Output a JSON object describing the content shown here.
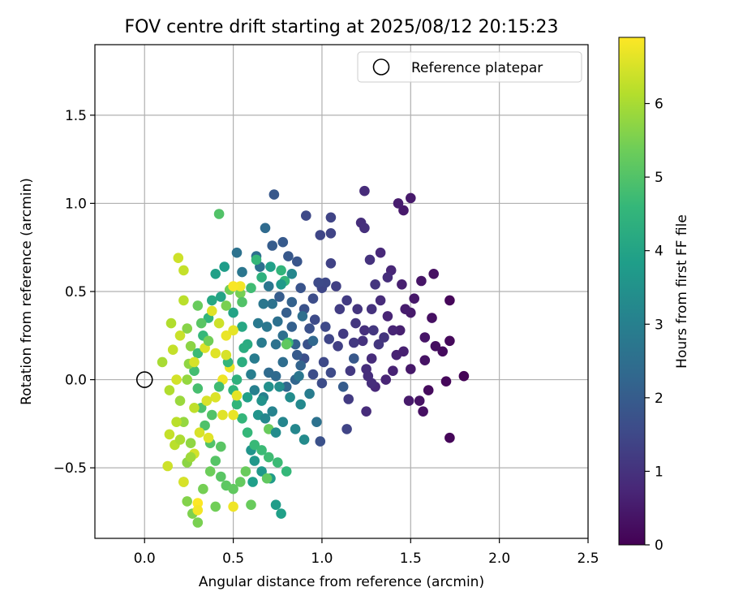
{
  "chart_data": {
    "type": "scatter",
    "title": "FOV centre drift starting at 2025/08/12 20:15:23",
    "xlabel": "Angular distance from reference (arcmin)",
    "ylabel": "Rotation from reference (arcmin)",
    "xlim": [
      -0.28,
      2.5
    ],
    "ylim": [
      -0.9,
      1.9
    ],
    "xticks": [
      0.0,
      0.5,
      1.0,
      1.5,
      2.0,
      2.5
    ],
    "xtick_labels": [
      "0.0",
      "0.5",
      "1.0",
      "1.5",
      "2.0",
      "2.5"
    ],
    "yticks": [
      -0.5,
      0.0,
      0.5,
      1.0,
      1.5
    ],
    "ytick_labels": [
      "−0.5",
      "0.0",
      "0.5",
      "1.0",
      "1.5"
    ],
    "grid": true,
    "legend": {
      "position": "top-right",
      "entries": [
        "Reference platepar"
      ]
    },
    "reference_point": {
      "x": 0.0,
      "y": 0.0,
      "label": "Reference platepar"
    },
    "colorbar": {
      "label": "Hours from first FF file",
      "colormap": "viridis",
      "range": [
        0,
        6.9
      ],
      "ticks": [
        0,
        1,
        2,
        3,
        4,
        5,
        6
      ],
      "tick_labels": [
        "0",
        "1",
        "2",
        "3",
        "4",
        "5",
        "6"
      ]
    },
    "points": [
      [
        1.8,
        0.02,
        0.05
      ],
      [
        1.72,
        0.45,
        0.1
      ],
      [
        1.7,
        -0.01,
        0.12
      ],
      [
        1.72,
        0.22,
        0.15
      ],
      [
        1.72,
        -0.33,
        0.1
      ],
      [
        1.68,
        0.16,
        0.2
      ],
      [
        1.64,
        0.19,
        0.25
      ],
      [
        1.63,
        0.6,
        0.3
      ],
      [
        1.6,
        -0.06,
        0.2
      ],
      [
        1.62,
        0.35,
        0.3
      ],
      [
        1.56,
        0.56,
        0.4
      ],
      [
        1.58,
        0.11,
        0.35
      ],
      [
        1.57,
        -0.18,
        0.3
      ],
      [
        1.55,
        -0.12,
        0.35
      ],
      [
        1.5,
        1.03,
        0.5
      ],
      [
        1.46,
        0.96,
        0.5
      ],
      [
        1.43,
        1.0,
        0.55
      ],
      [
        1.52,
        0.46,
        0.45
      ],
      [
        1.58,
        0.24,
        0.4
      ],
      [
        1.5,
        0.06,
        0.45
      ],
      [
        1.49,
        -0.12,
        0.5
      ],
      [
        1.5,
        0.38,
        0.5
      ],
      [
        1.45,
        0.54,
        0.6
      ],
      [
        1.47,
        0.4,
        0.55
      ],
      [
        1.44,
        0.28,
        0.6
      ],
      [
        1.42,
        0.14,
        0.65
      ],
      [
        1.4,
        0.28,
        0.7
      ],
      [
        1.37,
        0.36,
        0.7
      ],
      [
        1.39,
        0.62,
        0.75
      ],
      [
        1.33,
        0.72,
        0.8
      ],
      [
        1.36,
        0.0,
        0.7
      ],
      [
        1.3,
        -0.04,
        0.8
      ],
      [
        1.28,
        0.12,
        0.85
      ],
      [
        1.26,
        0.02,
        0.9
      ],
      [
        1.25,
        -0.18,
        0.85
      ],
      [
        1.25,
        0.06,
        0.9
      ],
      [
        1.24,
        0.28,
        0.95
      ],
      [
        1.23,
        0.22,
        1.0
      ],
      [
        1.24,
        1.07,
        0.85
      ],
      [
        1.22,
        0.89,
        0.9
      ],
      [
        1.24,
        0.86,
        0.95
      ],
      [
        1.27,
        0.68,
        1.0
      ],
      [
        1.3,
        0.54,
        1.05
      ],
      [
        1.28,
        0.4,
        1.0
      ],
      [
        1.29,
        0.28,
        1.1
      ],
      [
        1.32,
        0.2,
        1.1
      ],
      [
        1.35,
        0.24,
        1.05
      ],
      [
        1.19,
        0.32,
        1.1
      ],
      [
        1.18,
        0.21,
        1.15
      ],
      [
        1.16,
        0.05,
        1.15
      ],
      [
        1.15,
        -0.11,
        1.2
      ],
      [
        1.12,
        0.26,
        1.2
      ],
      [
        1.1,
        0.4,
        1.25
      ],
      [
        1.14,
        0.45,
        1.2
      ],
      [
        1.08,
        0.53,
        1.3
      ],
      [
        1.05,
        0.66,
        1.35
      ],
      [
        1.05,
        0.92,
        1.4
      ],
      [
        1.05,
        0.83,
        1.4
      ],
      [
        0.99,
        0.82,
        1.45
      ],
      [
        0.91,
        0.93,
        1.5
      ],
      [
        1.0,
        0.52,
        1.45
      ],
      [
        1.02,
        0.55,
        1.5
      ],
      [
        0.98,
        0.55,
        1.55
      ],
      [
        0.96,
        0.34,
        1.55
      ],
      [
        1.02,
        0.3,
        1.5
      ],
      [
        1.04,
        0.23,
        1.45
      ],
      [
        1.01,
        0.1,
        1.5
      ],
      [
        1.05,
        0.04,
        1.55
      ],
      [
        1.0,
        -0.02,
        1.6
      ],
      [
        0.95,
        0.03,
        1.6
      ],
      [
        0.9,
        0.12,
        1.65
      ],
      [
        1.14,
        -0.28,
        1.4
      ],
      [
        0.99,
        -0.35,
        1.7
      ],
      [
        0.93,
        0.29,
        1.7
      ],
      [
        0.9,
        0.4,
        1.75
      ],
      [
        0.88,
        0.52,
        1.8
      ],
      [
        0.86,
        0.67,
        1.85
      ],
      [
        0.81,
        0.7,
        1.9
      ],
      [
        0.78,
        0.78,
        1.95
      ],
      [
        0.73,
        1.05,
        1.9
      ],
      [
        0.72,
        0.76,
        2.0
      ],
      [
        0.76,
        0.47,
        2.0
      ],
      [
        0.8,
        0.38,
        2.05
      ],
      [
        0.83,
        0.3,
        2.1
      ],
      [
        0.85,
        0.2,
        2.15
      ],
      [
        0.88,
        0.08,
        2.2
      ],
      [
        0.85,
        0.0,
        2.25
      ],
      [
        0.8,
        -0.04,
        2.3
      ],
      [
        0.74,
        0.02,
        2.35
      ],
      [
        0.7,
        0.04,
        2.4
      ],
      [
        0.68,
        0.86,
        2.4
      ],
      [
        0.63,
        0.7,
        2.5
      ],
      [
        0.65,
        0.64,
        2.55
      ],
      [
        0.52,
        0.72,
        2.6
      ],
      [
        0.55,
        0.61,
        2.7
      ],
      [
        0.78,
        0.25,
        2.5
      ],
      [
        0.75,
        0.33,
        2.55
      ],
      [
        0.72,
        0.43,
        2.6
      ],
      [
        0.7,
        0.53,
        2.7
      ],
      [
        0.67,
        0.43,
        2.75
      ],
      [
        0.64,
        0.32,
        2.8
      ],
      [
        0.66,
        0.21,
        2.85
      ],
      [
        0.62,
        0.12,
        2.9
      ],
      [
        0.6,
        0.03,
        2.95
      ],
      [
        0.62,
        -0.06,
        3.0
      ],
      [
        0.67,
        -0.1,
        3.05
      ],
      [
        0.72,
        -0.18,
        3.1
      ],
      [
        0.78,
        -0.24,
        3.15
      ],
      [
        0.85,
        -0.28,
        3.2
      ],
      [
        0.9,
        -0.34,
        3.3
      ],
      [
        0.88,
        -0.14,
        3.25
      ],
      [
        0.82,
        -0.1,
        3.35
      ],
      [
        0.76,
        -0.04,
        3.4
      ],
      [
        0.7,
        -0.04,
        3.45
      ],
      [
        0.66,
        -0.12,
        3.5
      ],
      [
        0.64,
        -0.2,
        3.55
      ],
      [
        0.6,
        -0.4,
        3.6
      ],
      [
        0.62,
        -0.46,
        3.65
      ],
      [
        0.66,
        -0.52,
        3.7
      ],
      [
        0.74,
        -0.71,
        3.8
      ],
      [
        0.77,
        -0.76,
        3.9
      ],
      [
        0.61,
        -0.58,
        3.85
      ],
      [
        0.71,
        -0.56,
        3.75
      ],
      [
        0.45,
        0.64,
        3.8
      ],
      [
        0.4,
        0.6,
        3.9
      ],
      [
        0.43,
        0.47,
        4.0
      ],
      [
        0.38,
        0.45,
        4.1
      ],
      [
        0.5,
        0.38,
        4.0
      ],
      [
        0.55,
        0.3,
        4.1
      ],
      [
        0.58,
        0.2,
        4.2
      ],
      [
        0.55,
        0.1,
        4.3
      ],
      [
        0.52,
        0.0,
        4.4
      ],
      [
        0.5,
        -0.06,
        4.45
      ],
      [
        0.52,
        -0.14,
        4.5
      ],
      [
        0.55,
        -0.22,
        4.55
      ],
      [
        0.58,
        -0.3,
        4.6
      ],
      [
        0.62,
        -0.37,
        4.65
      ],
      [
        0.66,
        -0.4,
        4.7
      ],
      [
        0.7,
        -0.44,
        4.75
      ],
      [
        0.63,
        0.68,
        4.6
      ],
      [
        0.77,
        0.62,
        4.5
      ],
      [
        0.79,
        0.56,
        4.55
      ],
      [
        0.81,
        0.21,
        4.65
      ],
      [
        0.8,
        -0.52,
        4.6
      ],
      [
        0.75,
        -0.47,
        4.7
      ],
      [
        0.42,
        0.94,
        5.0
      ],
      [
        0.36,
        0.35,
        4.5
      ],
      [
        0.33,
        0.25,
        4.6
      ],
      [
        0.3,
        0.15,
        4.7
      ],
      [
        0.28,
        0.05,
        4.8
      ],
      [
        0.3,
        -0.05,
        4.85
      ],
      [
        0.32,
        -0.16,
        4.9
      ],
      [
        0.34,
        -0.26,
        4.95
      ],
      [
        0.37,
        -0.36,
        5.0
      ],
      [
        0.4,
        -0.46,
        5.05
      ],
      [
        0.43,
        -0.55,
        5.1
      ],
      [
        0.46,
        -0.6,
        5.15
      ],
      [
        0.5,
        -0.62,
        5.2
      ],
      [
        0.54,
        -0.58,
        5.25
      ],
      [
        0.57,
        -0.52,
        5.3
      ],
      [
        0.6,
        -0.71,
        5.3
      ],
      [
        0.69,
        -0.56,
        5.2
      ],
      [
        0.4,
        -0.72,
        5.4
      ],
      [
        0.3,
        -0.81,
        5.5
      ],
      [
        0.27,
        -0.76,
        5.55
      ],
      [
        0.24,
        -0.69,
        5.6
      ],
      [
        0.22,
        -0.58,
        5.65
      ],
      [
        0.24,
        -0.47,
        5.7
      ],
      [
        0.26,
        -0.36,
        5.75
      ],
      [
        0.22,
        -0.24,
        5.8
      ],
      [
        0.2,
        -0.12,
        5.85
      ],
      [
        0.24,
        0.0,
        5.8
      ],
      [
        0.25,
        0.09,
        5.75
      ],
      [
        0.26,
        0.19,
        5.7
      ],
      [
        0.24,
        0.29,
        5.65
      ],
      [
        0.48,
        0.51,
        5.4
      ],
      [
        0.46,
        0.42,
        5.5
      ],
      [
        0.54,
        0.49,
        5.45
      ],
      [
        0.7,
        -0.28,
        5.3
      ],
      [
        0.8,
        0.2,
        5.2
      ],
      [
        0.22,
        0.45,
        6.2
      ],
      [
        0.19,
        0.69,
        6.4
      ],
      [
        0.22,
        0.62,
        6.3
      ],
      [
        0.15,
        0.32,
        6.1
      ],
      [
        0.1,
        0.1,
        6.0
      ],
      [
        0.14,
        -0.06,
        6.1
      ],
      [
        0.18,
        -0.24,
        6.2
      ],
      [
        0.14,
        -0.31,
        6.3
      ],
      [
        0.13,
        -0.49,
        6.4
      ],
      [
        0.17,
        -0.37,
        6.2
      ],
      [
        0.22,
        -0.58,
        6.5
      ],
      [
        0.28,
        -0.42,
        6.45
      ],
      [
        0.31,
        -0.3,
        6.5
      ],
      [
        0.36,
        -0.33,
        6.6
      ],
      [
        0.4,
        -0.1,
        6.55
      ],
      [
        0.44,
        -0.2,
        6.6
      ],
      [
        0.5,
        -0.2,
        6.7
      ],
      [
        0.52,
        -0.09,
        6.65
      ],
      [
        0.48,
        0.07,
        6.7
      ],
      [
        0.44,
        0.0,
        6.75
      ],
      [
        0.4,
        0.15,
        6.6
      ],
      [
        0.46,
        0.25,
        6.7
      ],
      [
        0.5,
        0.28,
        6.65
      ],
      [
        0.54,
        0.53,
        6.8
      ],
      [
        0.5,
        0.53,
        6.85
      ],
      [
        0.3,
        -0.7,
        6.9
      ],
      [
        0.3,
        -0.74,
        6.8
      ],
      [
        0.5,
        -0.72,
        6.75
      ],
      [
        0.38,
        0.39,
        6.6
      ],
      [
        0.34,
        0.18,
        6.55
      ],
      [
        0.28,
        0.1,
        6.5
      ],
      [
        0.18,
        0.0,
        6.45
      ],
      [
        0.16,
        0.17,
        6.3
      ],
      [
        0.35,
        -0.12,
        6.5
      ],
      [
        0.2,
        0.25,
        6.35
      ],
      [
        1.37,
        0.58,
        0.9
      ],
      [
        1.46,
        0.16,
        0.6
      ],
      [
        1.4,
        0.05,
        0.65
      ],
      [
        1.28,
        -0.02,
        0.9
      ],
      [
        1.33,
        0.45,
        0.85
      ],
      [
        1.2,
        0.4,
        1.05
      ],
      [
        1.09,
        0.19,
        1.3
      ],
      [
        0.95,
        0.46,
        1.6
      ],
      [
        0.92,
        0.2,
        1.75
      ],
      [
        0.86,
        0.14,
        1.95
      ],
      [
        0.83,
        0.44,
        2.15
      ],
      [
        0.78,
        0.1,
        2.45
      ],
      [
        0.74,
        0.2,
        2.6
      ],
      [
        0.69,
        0.3,
        2.75
      ],
      [
        0.68,
        -0.22,
        3.2
      ],
      [
        0.74,
        -0.3,
        3.35
      ],
      [
        0.58,
        -0.1,
        3.9
      ],
      [
        0.56,
        0.18,
        4.25
      ],
      [
        0.47,
        0.1,
        4.55
      ],
      [
        0.42,
        -0.04,
        4.75
      ],
      [
        0.38,
        -0.2,
        5.0
      ],
      [
        0.43,
        -0.38,
        5.1
      ],
      [
        0.37,
        -0.52,
        5.35
      ],
      [
        0.33,
        -0.62,
        5.45
      ],
      [
        0.26,
        -0.44,
        5.9
      ],
      [
        0.2,
        -0.34,
        6.05
      ],
      [
        0.32,
        0.32,
        5.1
      ],
      [
        0.36,
        0.22,
        5.4
      ],
      [
        0.3,
        0.42,
        5.3
      ],
      [
        0.28,
        -0.16,
        6.25
      ],
      [
        0.42,
        0.32,
        6.4
      ],
      [
        0.46,
        0.14,
        6.5
      ],
      [
        0.55,
        0.44,
        5.0
      ],
      [
        0.6,
        0.52,
        4.75
      ],
      [
        0.66,
        0.58,
        4.4
      ],
      [
        0.71,
        0.64,
        3.9
      ],
      [
        0.77,
        0.54,
        3.7
      ],
      [
        0.83,
        0.6,
        3.2
      ],
      [
        0.89,
        0.36,
        2.5
      ],
      [
        0.95,
        0.22,
        2.3
      ],
      [
        1.12,
        -0.04,
        2.0
      ],
      [
        1.18,
        0.12,
        1.9
      ],
      [
        0.87,
        0.02,
        2.7
      ],
      [
        0.93,
        -0.08,
        2.9
      ],
      [
        0.97,
        -0.24,
        2.6
      ]
    ]
  }
}
